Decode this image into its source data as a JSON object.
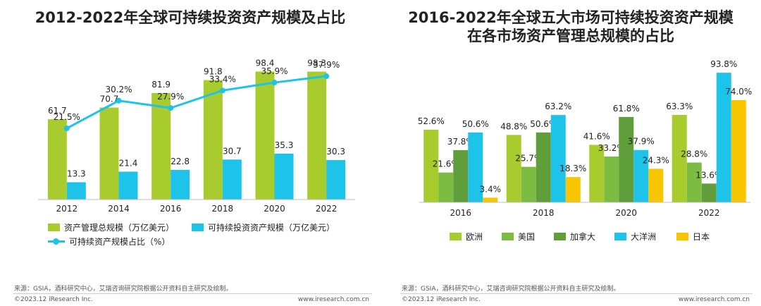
{
  "chart_data": [
    {
      "type": "bar+line",
      "title": "2012-2022年全球可持续投资资产规模及占比",
      "categories": [
        "2012",
        "2014",
        "2016",
        "2018",
        "2020",
        "2022"
      ],
      "series": [
        {
          "name": "资产管理总规模（万亿美元）",
          "kind": "bar",
          "color": "#a8cc2e",
          "values": [
            61.7,
            70.7,
            81.9,
            91.8,
            98.4,
            98.3
          ]
        },
        {
          "name": "可持续投资资产规模（万亿美元）",
          "kind": "bar",
          "color": "#1ec3ea",
          "values": [
            13.3,
            21.4,
            22.8,
            30.7,
            35.3,
            30.3
          ]
        },
        {
          "name": "可持续资产规模占比（%）",
          "kind": "line",
          "color": "#1ec3ea",
          "values": [
            21.5,
            30.2,
            27.9,
            33.4,
            35.9,
            37.9
          ],
          "labels": [
            "21.5%",
            "30.2%",
            "27.9%",
            "33.4%",
            "35.9%",
            "37.9%"
          ]
        }
      ],
      "ylim_bar": [
        0,
        110
      ],
      "ylim_line": [
        0,
        45
      ]
    },
    {
      "type": "bar",
      "title_line1": "2016-2022年全球五大市场可持续投资资产规模",
      "title_line2": "在各市场资产管理总规模的占比",
      "categories": [
        "2016",
        "2018",
        "2020",
        "2022"
      ],
      "series": [
        {
          "name": "欧洲",
          "color": "#a8cc2e",
          "values": [
            52.6,
            48.8,
            41.6,
            63.3
          ],
          "labels": [
            "52.6%",
            "48.8%",
            "41.6%",
            "63.3%"
          ]
        },
        {
          "name": "美国",
          "color": "#7dbc42",
          "values": [
            21.6,
            25.7,
            33.2,
            28.8
          ],
          "labels": [
            "21.6%",
            "25.7%",
            "33.2%",
            "28.8%"
          ]
        },
        {
          "name": "加拿大",
          "color": "#5f9e3a",
          "values": [
            37.8,
            50.6,
            61.8,
            13.6
          ],
          "labels": [
            "37.8%",
            "50.6%",
            "61.8%",
            "13.6%"
          ]
        },
        {
          "name": "大洋洲",
          "color": "#1ec3ea",
          "values": [
            50.6,
            63.2,
            37.9,
            93.8
          ],
          "labels": [
            "50.6%",
            "63.2%",
            "37.9%",
            "93.8%"
          ]
        },
        {
          "name": "日本",
          "color": "#f7c600",
          "values": [
            3.4,
            18.3,
            24.3,
            74.0
          ],
          "labels": [
            "3.4%",
            "18.3%",
            "24.3%",
            "74.0%"
          ]
        }
      ],
      "ylim": [
        0,
        100
      ]
    }
  ],
  "source_left": "来源：GSIA，酒科研究中心，艾瑞咨询研究院根据公开资料自主研究及绘制。",
  "source_right": "来源：GSIA，酒科研究中心，艾瑞咨询研究院根据公开资料自主研究及绘制。",
  "copyright": "©2023.12 iResearch Inc.",
  "website": "www.iresearch.com.cn"
}
